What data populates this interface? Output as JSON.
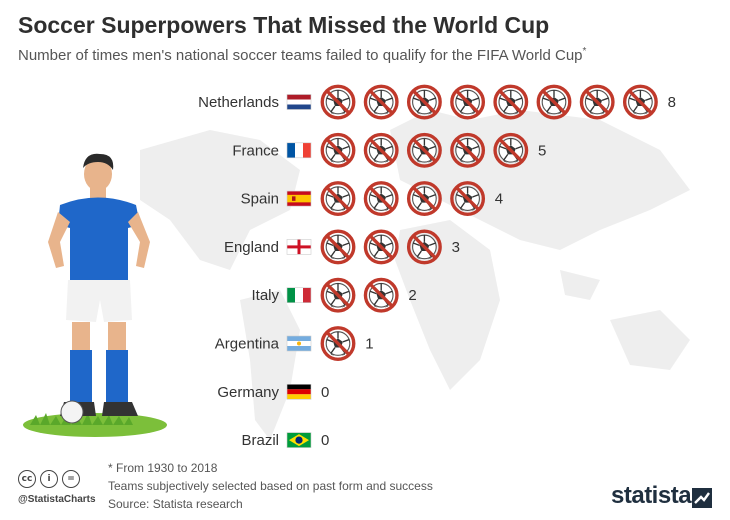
{
  "header": {
    "title": "Soccer Superpowers That Missed the World Cup",
    "subtitle": "Number of times men's national soccer teams failed to qualify for the FIFA World Cup",
    "subtitle_mark": "*"
  },
  "chart_data": {
    "type": "pictogram-bar",
    "title": "Soccer Superpowers That Missed the World Cup",
    "subtitle": "Number of times men's national soccer teams failed to qualify for the FIFA World Cup*",
    "icon": "crossed-out-soccer-ball-icon",
    "categories": [
      "Netherlands",
      "France",
      "Spain",
      "England",
      "Italy",
      "Argentina",
      "Germany",
      "Brazil"
    ],
    "values": [
      8,
      5,
      4,
      3,
      2,
      1,
      0,
      0
    ],
    "flags": [
      "netherlands",
      "france",
      "spain",
      "england",
      "italy",
      "argentina",
      "germany",
      "brazil"
    ],
    "colors": {
      "ban": "#c0392b",
      "ball": "#ffffff",
      "ball_patch": "#333333"
    }
  },
  "footer": {
    "note1": "* From 1930 to 2018",
    "note2": "Teams subjectively selected based on past form and success",
    "source": "Source: Statista research",
    "handle": "@StatistaCharts",
    "brand": "statista",
    "cc_icons": [
      "cc",
      "i",
      "="
    ]
  }
}
